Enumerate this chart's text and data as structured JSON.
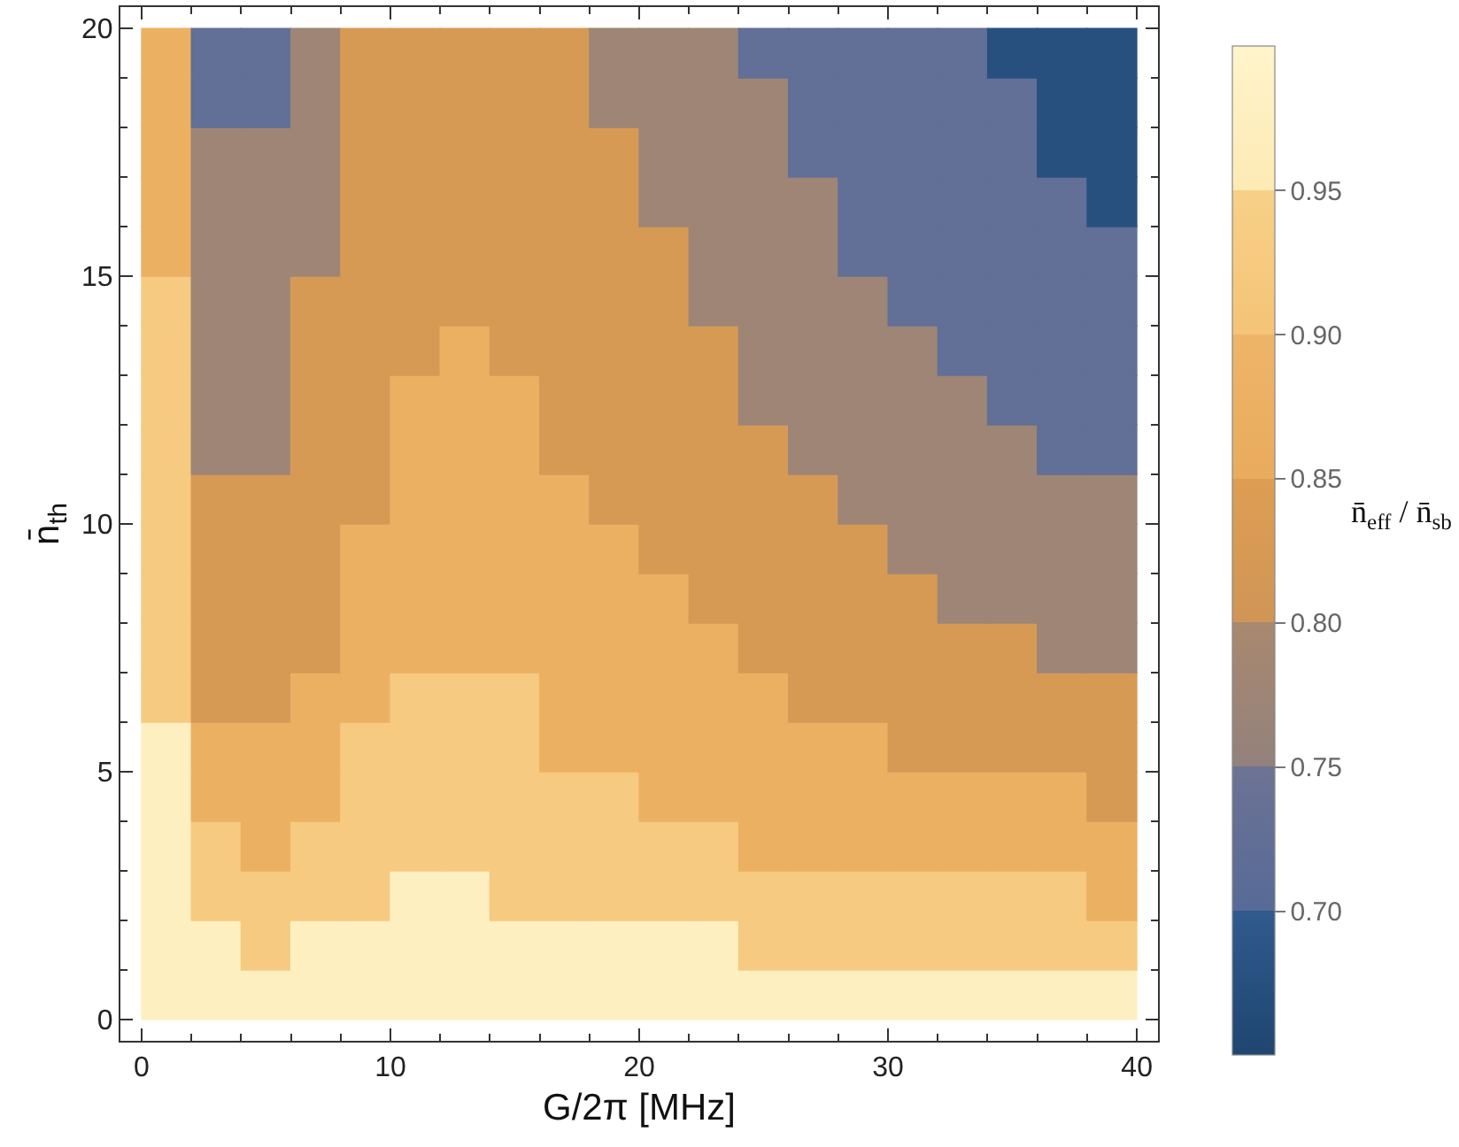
{
  "chart_data": {
    "type": "heatmap",
    "xlabel": "G/2π [MHz]",
    "ylabel": "n̄$_{th}$",
    "clabel": "n̄$_{eff}$ / n̄$_{sb}$",
    "x": [
      1,
      3,
      5,
      7,
      9,
      11,
      13,
      15,
      17,
      19,
      21,
      23,
      25,
      27,
      29,
      31,
      33,
      35,
      37,
      39
    ],
    "y": [
      0.5,
      1.5,
      2.5,
      3.5,
      4.5,
      5.5,
      6.5,
      7.5,
      8.5,
      9.5,
      10.5,
      11.5,
      12.5,
      13.5,
      14.5,
      15.5,
      16.5,
      17.5,
      18.5,
      19.5
    ],
    "cells": [
      [
        0.975,
        0.975,
        0.975,
        0.975,
        0.975,
        0.975,
        0.975,
        0.975,
        0.975,
        0.975,
        0.975,
        0.975,
        0.975,
        0.975,
        0.975,
        0.975,
        0.975,
        0.975,
        0.975,
        0.975
      ],
      [
        0.975,
        0.975,
        0.925,
        0.975,
        0.975,
        0.975,
        0.975,
        0.975,
        0.975,
        0.975,
        0.975,
        0.975,
        0.925,
        0.925,
        0.925,
        0.925,
        0.925,
        0.925,
        0.925,
        0.925
      ],
      [
        0.975,
        0.925,
        0.925,
        0.925,
        0.925,
        0.975,
        0.975,
        0.925,
        0.925,
        0.925,
        0.925,
        0.925,
        0.925,
        0.925,
        0.925,
        0.925,
        0.925,
        0.925,
        0.925,
        0.875
      ],
      [
        0.975,
        0.925,
        0.875,
        0.925,
        0.925,
        0.925,
        0.925,
        0.925,
        0.925,
        0.925,
        0.925,
        0.925,
        0.875,
        0.875,
        0.875,
        0.875,
        0.875,
        0.875,
        0.875,
        0.875
      ],
      [
        0.975,
        0.875,
        0.875,
        0.875,
        0.925,
        0.925,
        0.925,
        0.925,
        0.925,
        0.925,
        0.875,
        0.875,
        0.875,
        0.875,
        0.875,
        0.875,
        0.875,
        0.875,
        0.875,
        0.825
      ],
      [
        0.975,
        0.875,
        0.875,
        0.875,
        0.925,
        0.925,
        0.925,
        0.925,
        0.875,
        0.875,
        0.875,
        0.875,
        0.875,
        0.875,
        0.875,
        0.825,
        0.825,
        0.825,
        0.825,
        0.825
      ],
      [
        0.925,
        0.825,
        0.825,
        0.875,
        0.875,
        0.925,
        0.925,
        0.925,
        0.875,
        0.875,
        0.875,
        0.875,
        0.875,
        0.825,
        0.825,
        0.825,
        0.825,
        0.825,
        0.825,
        0.825
      ],
      [
        0.925,
        0.825,
        0.825,
        0.825,
        0.875,
        0.875,
        0.875,
        0.875,
        0.875,
        0.875,
        0.875,
        0.875,
        0.825,
        0.825,
        0.825,
        0.825,
        0.825,
        0.825,
        0.775,
        0.775
      ],
      [
        0.925,
        0.825,
        0.825,
        0.825,
        0.875,
        0.875,
        0.875,
        0.875,
        0.875,
        0.875,
        0.875,
        0.825,
        0.825,
        0.825,
        0.825,
        0.825,
        0.775,
        0.775,
        0.775,
        0.775
      ],
      [
        0.925,
        0.825,
        0.825,
        0.825,
        0.875,
        0.875,
        0.875,
        0.875,
        0.875,
        0.875,
        0.825,
        0.825,
        0.825,
        0.825,
        0.825,
        0.775,
        0.775,
        0.775,
        0.775,
        0.775
      ],
      [
        0.925,
        0.825,
        0.825,
        0.825,
        0.825,
        0.875,
        0.875,
        0.875,
        0.875,
        0.825,
        0.825,
        0.825,
        0.825,
        0.825,
        0.775,
        0.775,
        0.775,
        0.775,
        0.775,
        0.775
      ],
      [
        0.925,
        0.775,
        0.775,
        0.825,
        0.825,
        0.875,
        0.875,
        0.875,
        0.825,
        0.825,
        0.825,
        0.825,
        0.825,
        0.775,
        0.775,
        0.775,
        0.775,
        0.775,
        0.725,
        0.725
      ],
      [
        0.925,
        0.775,
        0.775,
        0.825,
        0.825,
        0.875,
        0.875,
        0.875,
        0.825,
        0.825,
        0.825,
        0.825,
        0.775,
        0.775,
        0.775,
        0.775,
        0.775,
        0.725,
        0.725,
        0.725
      ],
      [
        0.925,
        0.775,
        0.775,
        0.825,
        0.825,
        0.825,
        0.875,
        0.825,
        0.825,
        0.825,
        0.825,
        0.825,
        0.775,
        0.775,
        0.775,
        0.775,
        0.725,
        0.725,
        0.725,
        0.725
      ],
      [
        0.925,
        0.775,
        0.775,
        0.825,
        0.825,
        0.825,
        0.825,
        0.825,
        0.825,
        0.825,
        0.825,
        0.775,
        0.775,
        0.775,
        0.775,
        0.725,
        0.725,
        0.725,
        0.725,
        0.725
      ],
      [
        0.875,
        0.775,
        0.775,
        0.775,
        0.825,
        0.825,
        0.825,
        0.825,
        0.825,
        0.825,
        0.825,
        0.775,
        0.775,
        0.775,
        0.725,
        0.725,
        0.725,
        0.725,
        0.725,
        0.725
      ],
      [
        0.875,
        0.775,
        0.775,
        0.775,
        0.825,
        0.825,
        0.825,
        0.825,
        0.825,
        0.825,
        0.775,
        0.775,
        0.775,
        0.775,
        0.725,
        0.725,
        0.725,
        0.725,
        0.725,
        0.675
      ],
      [
        0.875,
        0.775,
        0.775,
        0.775,
        0.825,
        0.825,
        0.825,
        0.825,
        0.825,
        0.825,
        0.775,
        0.775,
        0.775,
        0.725,
        0.725,
        0.725,
        0.725,
        0.725,
        0.675,
        0.675
      ],
      [
        0.875,
        0.725,
        0.725,
        0.775,
        0.825,
        0.825,
        0.825,
        0.825,
        0.825,
        0.775,
        0.775,
        0.775,
        0.775,
        0.725,
        0.725,
        0.725,
        0.725,
        0.725,
        0.675,
        0.675
      ],
      [
        0.875,
        0.725,
        0.725,
        0.775,
        0.825,
        0.825,
        0.825,
        0.825,
        0.825,
        0.775,
        0.775,
        0.775,
        0.725,
        0.725,
        0.725,
        0.725,
        0.725,
        0.675,
        0.675,
        0.675
      ]
    ],
    "colors": [
      "#26558a",
      "#626f9a",
      "#9e8576",
      "#db9a50",
      "#ecb062",
      "#f6c87c",
      "#fff2c0"
    ],
    "clim": [
      0.65,
      1.0
    ],
    "cticks": [
      {
        "value": 0.7,
        "label": "0.70"
      },
      {
        "value": 0.75,
        "label": "0.75"
      },
      {
        "value": 0.8,
        "label": "0.80"
      },
      {
        "value": 0.85,
        "label": "0.85"
      },
      {
        "value": 0.9,
        "label": "0.90"
      },
      {
        "value": 0.95,
        "label": "0.95"
      }
    ],
    "xlim": [
      -0.85,
      40.85
    ],
    "ylim": [
      -0.43,
      20.43
    ],
    "xticks": [
      0,
      10,
      20,
      30,
      40
    ],
    "yticks": [
      0,
      5,
      10,
      15,
      20
    ],
    "grid": false
  }
}
